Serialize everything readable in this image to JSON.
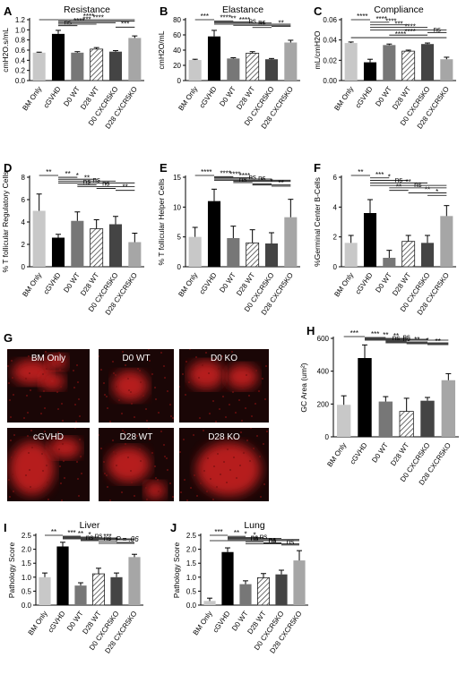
{
  "colors": {
    "bm_only": "#c8c8c8",
    "cgvhd": "#000000",
    "d0_wt": "#777777",
    "d28_wt": "#ffffff",
    "d0_cxcr5ko": "#444444",
    "d28_cxcr5ko": "#a6a6a6",
    "micro_bg": "#1a0606",
    "micro_red": "#d22222"
  },
  "categories": [
    "BM Only",
    "cGVHD",
    "D0 WT",
    "D28 WT",
    "D0 CXCR5KO",
    "D28 CXCR5KO"
  ],
  "chart_data": [
    {
      "panel": "A",
      "type": "bar",
      "title": "Resistance",
      "ylabel": "cmH2O.s/mL",
      "ylim": [
        0,
        1.2
      ],
      "yticks": [
        "0.0",
        "0.2",
        "0.4",
        "0.6",
        "0.8",
        "1.0",
        "1.2"
      ],
      "values": [
        0.55,
        0.92,
        0.55,
        0.62,
        0.57,
        0.84
      ],
      "errors": [
        0.01,
        0.07,
        0.02,
        0.03,
        0.02,
        0.04
      ],
      "sig": [
        "****",
        "****",
        "***",
        "****",
        "ns",
        "***"
      ]
    },
    {
      "panel": "B",
      "type": "bar",
      "title": "Elastance",
      "ylabel": "cmH2O/mL",
      "ylim": [
        0,
        80
      ],
      "yticks": [
        "0",
        "20",
        "40",
        "60",
        "80"
      ],
      "values": [
        27,
        58,
        29,
        36,
        28,
        50
      ],
      "errors": [
        1,
        8,
        1,
        2,
        1,
        3
      ],
      "sig": [
        "***",
        "****",
        "**",
        "****",
        "ns",
        "ns",
        "**",
        "**"
      ]
    },
    {
      "panel": "C",
      "type": "bar",
      "title": "Compliance",
      "ylabel": "mL/cmH2O",
      "ylim": [
        0,
        0.06
      ],
      "yticks": [
        "0.00",
        "0.02",
        "0.04",
        "0.06"
      ],
      "values": [
        0.037,
        0.018,
        0.035,
        0.029,
        0.036,
        0.021
      ],
      "errors": [
        0.001,
        0.003,
        0.001,
        0.001,
        0.001,
        0.002
      ],
      "sig": [
        "****",
        "****",
        "****",
        "***",
        "****",
        "ns",
        "****",
        "****"
      ]
    },
    {
      "panel": "D",
      "type": "bar",
      "ylabel": "% T follicular Regulatory Cells",
      "ylim": [
        0,
        8
      ],
      "yticks": [
        "0",
        "2",
        "4",
        "6",
        "8"
      ],
      "values": [
        5.0,
        2.6,
        4.1,
        3.4,
        3.8,
        2.2
      ],
      "errors": [
        1.5,
        0.3,
        0.8,
        0.8,
        0.7,
        0.8
      ],
      "sig": [
        "**",
        "**",
        "*",
        "**",
        "ns",
        "ns",
        "ns",
        "*",
        "**"
      ]
    },
    {
      "panel": "E",
      "type": "bar",
      "ylabel": "% T follicular Helper Cells",
      "ylim": [
        0,
        15
      ],
      "yticks": [
        "0",
        "5",
        "10",
        "15"
      ],
      "values": [
        5.0,
        11.0,
        4.8,
        4.0,
        3.9,
        8.3
      ],
      "errors": [
        1.6,
        2.0,
        2.0,
        2.2,
        1.8,
        3.0
      ],
      "sig": [
        "****",
        "****",
        "****",
        "****",
        "ns",
        "ns",
        "ns",
        "*",
        "*",
        "**"
      ]
    },
    {
      "panel": "F",
      "type": "bar",
      "ylabel": "%Germinal Center B-Cells",
      "ylim": [
        0,
        6
      ],
      "yticks": [
        "0",
        "2",
        "4",
        "6"
      ],
      "values": [
        1.6,
        3.6,
        0.6,
        1.7,
        1.6,
        3.4
      ],
      "errors": [
        0.5,
        0.9,
        0.5,
        0.4,
        0.5,
        0.7
      ],
      "sig": [
        "**",
        "***",
        "*",
        "ns",
        "**",
        "ns",
        "**",
        "**",
        "*"
      ]
    },
    {
      "panel": "H",
      "type": "bar",
      "ylabel": "GC Area (um²)",
      "ylim": [
        0,
        600
      ],
      "yticks": [
        "0",
        "200",
        "400",
        "600"
      ],
      "values": [
        195,
        480,
        215,
        155,
        220,
        345
      ],
      "errors": [
        55,
        80,
        30,
        80,
        20,
        40
      ],
      "sig": [
        "***",
        "***",
        "**",
        "**",
        "ns",
        "ns",
        "ns",
        "**",
        "*",
        "**"
      ]
    },
    {
      "panel": "I",
      "type": "bar",
      "title": "Liver",
      "ylabel": "Pathology Score",
      "ylim": [
        0,
        2.5
      ],
      "yticks": [
        "0.0",
        "0.5",
        "1.0",
        "1.5",
        "2.0",
        "2.5"
      ],
      "values": [
        1.0,
        2.1,
        0.7,
        1.12,
        1.0,
        1.72
      ],
      "errors": [
        0.15,
        0.15,
        0.1,
        0.2,
        0.15,
        0.1
      ],
      "sig": [
        "**",
        "***",
        "**",
        "*",
        "ns",
        "***",
        "ns",
        "ns",
        "P = .06",
        "*"
      ]
    },
    {
      "panel": "J",
      "type": "bar",
      "title": "Lung",
      "ylabel": "Pathology Score",
      "ylim": [
        0,
        2.5
      ],
      "yticks": [
        "0.0",
        "0.5",
        "1.0",
        "1.5",
        "2.0",
        "2.5"
      ],
      "values": [
        0.15,
        1.9,
        0.75,
        0.98,
        1.1,
        1.6
      ],
      "errors": [
        0.1,
        0.15,
        0.12,
        0.15,
        0.15,
        0.35
      ],
      "sig": [
        "***",
        "**",
        "*",
        "*",
        "ns",
        "ns",
        "ns",
        "ns",
        "ns",
        "ns"
      ]
    }
  ],
  "micrographs": {
    "panel": "G",
    "tiles": [
      "BM Only",
      "D0 WT",
      "D0 KO",
      "cGVHD",
      "D28 WT",
      "D28 KO"
    ]
  }
}
